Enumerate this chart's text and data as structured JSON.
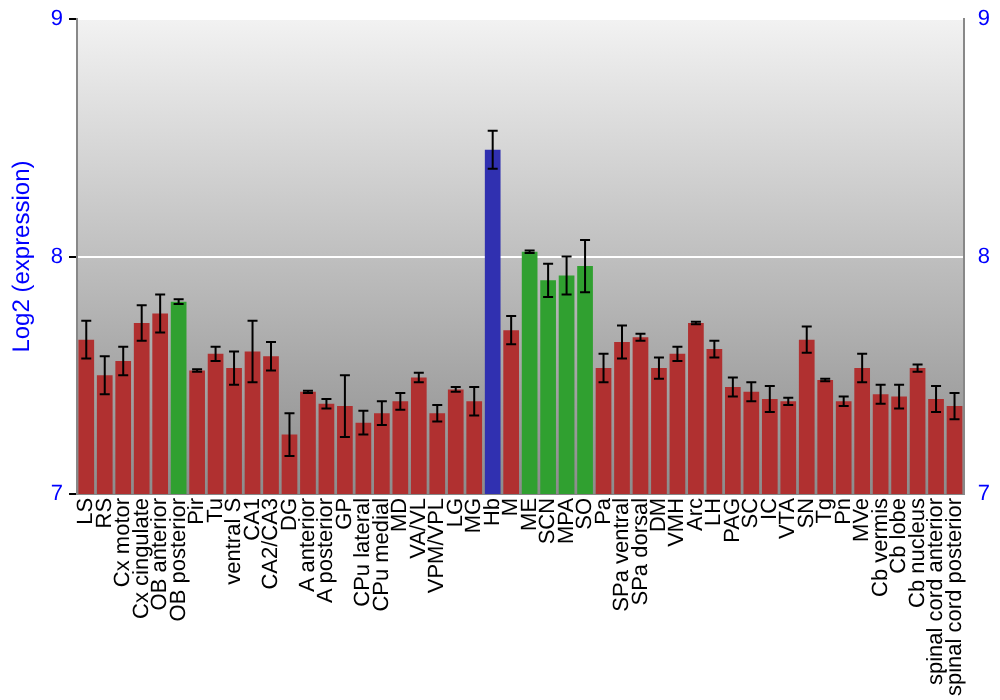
{
  "chart_data": {
    "type": "bar",
    "ylabel": "Log2 (expression)",
    "categories": [
      "LS",
      "RS",
      "Cx motor",
      "Cx cingulate",
      "OB anterior",
      "OB posterior",
      "Pir",
      "Tu",
      "ventral S",
      "CA1",
      "CA2/CA3",
      "DG",
      "A anterior",
      "A posterior",
      "GP",
      "CPu lateral",
      "CPu medial",
      "MD",
      "VA/VL",
      "VPM/VPL",
      "LG",
      "MG",
      "Hb",
      "M",
      "ME",
      "SCN",
      "MPA",
      "SO",
      "Pa",
      "SPa ventral",
      "SPa dorsal",
      "DM",
      "VMH",
      "Arc",
      "LH",
      "PAG",
      "SC",
      "IC",
      "VTA",
      "SN",
      "Tg",
      "Pn",
      "MVe",
      "Cb vermis",
      "Cb lobe",
      "Cb nucleus",
      "spinal cord anterior",
      "spinal cord posterior"
    ],
    "values": [
      7.65,
      7.5,
      7.56,
      7.72,
      7.76,
      7.81,
      7.52,
      7.59,
      7.53,
      7.6,
      7.58,
      7.25,
      7.43,
      7.38,
      7.37,
      7.3,
      7.34,
      7.39,
      7.49,
      7.34,
      7.44,
      7.39,
      8.45,
      7.69,
      8.02,
      7.9,
      7.92,
      7.96,
      7.53,
      7.64,
      7.66,
      7.53,
      7.59,
      7.72,
      7.61,
      7.45,
      7.43,
      7.4,
      7.39,
      7.65,
      7.48,
      7.39,
      7.53,
      7.42,
      7.41,
      7.53,
      7.4,
      7.37
    ],
    "errors": [
      0.08,
      0.08,
      0.06,
      0.075,
      0.08,
      0.01,
      0.005,
      0.03,
      0.07,
      0.13,
      0.06,
      0.09,
      0.005,
      0.02,
      0.13,
      0.05,
      0.05,
      0.035,
      0.02,
      0.035,
      0.01,
      0.06,
      0.08,
      0.06,
      0.005,
      0.07,
      0.08,
      0.11,
      0.06,
      0.07,
      0.015,
      0.045,
      0.03,
      0.005,
      0.035,
      0.04,
      0.04,
      0.055,
      0.015,
      0.055,
      0.005,
      0.02,
      0.06,
      0.04,
      0.05,
      0.015,
      0.055,
      0.055
    ],
    "colors": [
      "#b03030",
      "#b03030",
      "#b03030",
      "#b03030",
      "#b03030",
      "#30a030",
      "#b03030",
      "#b03030",
      "#b03030",
      "#b03030",
      "#b03030",
      "#b03030",
      "#b03030",
      "#b03030",
      "#b03030",
      "#b03030",
      "#b03030",
      "#b03030",
      "#b03030",
      "#b03030",
      "#b03030",
      "#b03030",
      "#3030b0",
      "#b03030",
      "#30a030",
      "#30a030",
      "#30a030",
      "#30a030",
      "#b03030",
      "#b03030",
      "#b03030",
      "#b03030",
      "#b03030",
      "#b03030",
      "#b03030",
      "#b03030",
      "#b03030",
      "#b03030",
      "#b03030",
      "#b03030",
      "#b03030",
      "#b03030",
      "#b03030",
      "#b03030",
      "#b03030",
      "#b03030",
      "#b03030",
      "#b03030"
    ],
    "ylim": [
      7,
      9
    ],
    "yticks": [
      7,
      8,
      9
    ],
    "y2lim": [
      7,
      9
    ],
    "y2ticks": [
      7,
      8,
      9
    ],
    "grid": "y",
    "legend": false
  }
}
